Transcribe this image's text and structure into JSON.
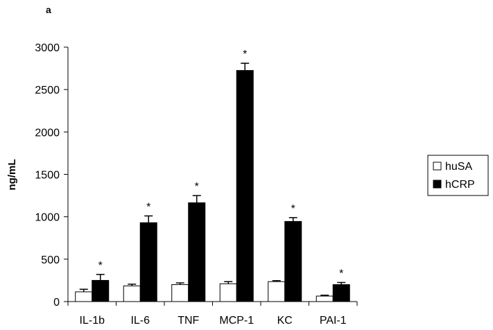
{
  "panel_label": "a",
  "chart_data": {
    "type": "bar",
    "title": "",
    "xlabel": "",
    "ylabel": "ng/mL",
    "ylim": [
      0,
      3000
    ],
    "yticks": [
      0,
      500,
      1000,
      1500,
      2000,
      2500,
      3000
    ],
    "categories": [
      "IL-1b",
      "IL-6",
      "TNF",
      "MCP-1",
      "KC",
      "PAI-1"
    ],
    "series": [
      {
        "name": "huSA",
        "values": [
          115,
          185,
          200,
          210,
          235,
          65
        ],
        "errors": [
          30,
          20,
          20,
          25,
          12,
          10
        ],
        "color": "#ffffff"
      },
      {
        "name": "hCRP",
        "values": [
          250,
          930,
          1165,
          2725,
          945,
          200
        ],
        "errors": [
          70,
          80,
          85,
          85,
          45,
          25
        ],
        "color": "#000000"
      }
    ],
    "significance": [
      "*",
      "*",
      "*",
      "*",
      "*",
      "*"
    ],
    "grid": false,
    "legend_position": "right"
  }
}
